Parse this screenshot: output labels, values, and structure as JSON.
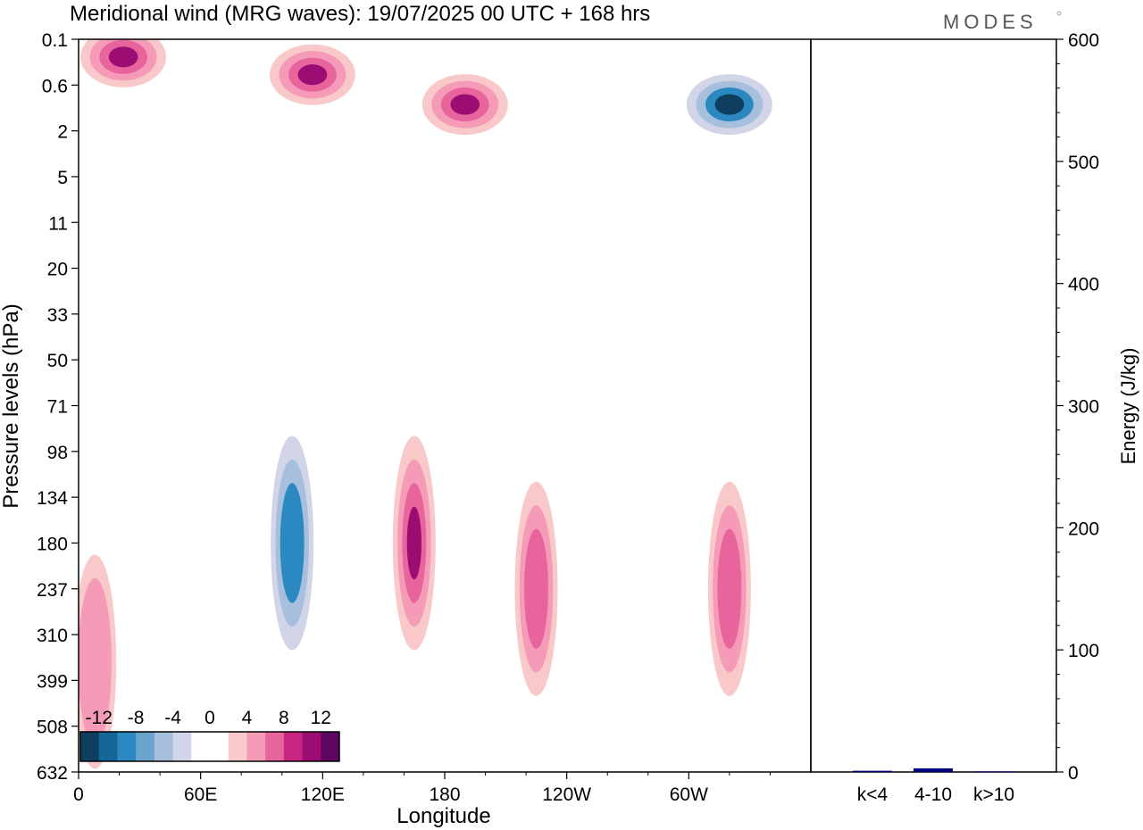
{
  "chart_data": [
    {
      "type": "heatmap",
      "title": "Meridional wind (MRG waves):  19/07/2025  00 UTC  + 168 hrs",
      "brand": "MODES",
      "xlabel": "Longitude",
      "ylabel": "Pressure levels (hPa)",
      "x_ticks": [
        "0",
        "60E",
        "120E",
        "180",
        "120W",
        "60W"
      ],
      "y_ticks": [
        "0.1",
        "0.6",
        "2",
        "5",
        "11",
        "20",
        "33",
        "50",
        "71",
        "98",
        "134",
        "180",
        "237",
        "310",
        "399",
        "508",
        "632"
      ],
      "colorbar": {
        "labels": [
          "-12",
          "-8",
          "-4",
          "0",
          "4",
          "8",
          "12"
        ],
        "colors": [
          "#0e3f5f",
          "#15679a",
          "#2b88c0",
          "#6aa3cc",
          "#a6bfdd",
          "#d1d5e7",
          "#ffffff",
          "#ffffff",
          "#f9c8c8",
          "#f59bb8",
          "#e8649c",
          "#c7257f",
          "#9c0d73",
          "#5d0561"
        ]
      },
      "features": [
        {
          "sign": "positive",
          "level": 3,
          "lon": 22,
          "p": "0.2"
        },
        {
          "sign": "positive",
          "level": 3,
          "lon": 115,
          "p": "0.4"
        },
        {
          "sign": "positive",
          "level": 3,
          "lon": 190,
          "p": "1"
        },
        {
          "sign": "negative",
          "level": 3,
          "lon": 320,
          "p": "1"
        },
        {
          "sign": "positive",
          "level": 3,
          "lon": 165,
          "p": "180"
        },
        {
          "sign": "negative",
          "level": 2,
          "lon": 105,
          "p": "180"
        },
        {
          "sign": "positive",
          "level": 2,
          "lon": 225,
          "p": "237"
        },
        {
          "sign": "positive",
          "level": 2,
          "lon": 320,
          "p": "237"
        },
        {
          "sign": "positive",
          "level": 1,
          "lon": 8,
          "p": "360"
        }
      ]
    },
    {
      "type": "bar",
      "ylabel": "Energy (J/kg)",
      "ylim": [
        0,
        600
      ],
      "y_ticks": [
        "0",
        "100",
        "200",
        "300",
        "400",
        "500",
        "600"
      ],
      "categories": [
        "k<4",
        "4-10",
        "k>10"
      ],
      "values": [
        1,
        3,
        0.5
      ],
      "bar_color": "#000080"
    }
  ]
}
